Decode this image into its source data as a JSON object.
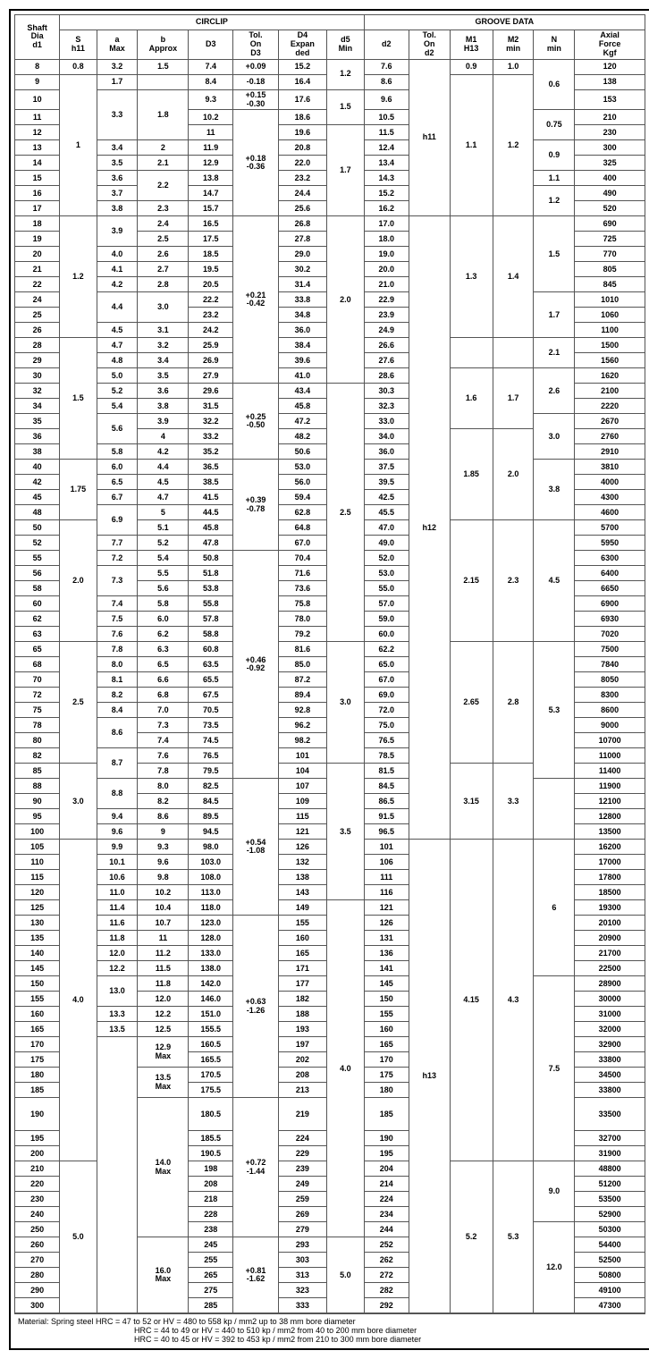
{
  "title_circlip": "CIRCLIP",
  "title_groove": "GROOVE DATA",
  "headers": {
    "shaft": "Shaft\nDia\nd1",
    "s": "S\nh11",
    "a": "a\nMax",
    "b": "b\nApprox",
    "d3": "D3",
    "told3": "Tol.\nOn\nD3",
    "d4": "D4\nExpan\nded",
    "d5": "d5\nMin",
    "d2": "d2",
    "told2": "Tol.\nOn\nd2",
    "m1": "M1\nH13",
    "m2": "M2\nmin",
    "n": "N\nmin",
    "axial": "Axial\nForce\nKgf"
  },
  "tolerances": {
    "d3_1": "+0.09",
    "d3_2": "-0.18",
    "d3_3": "+0.15\n-0.30",
    "d3_4": "+0.18\n-0.36",
    "d3_5": "+0.21\n-0.42",
    "d3_6": "+0.25\n-0.50",
    "d3_7": "+0.39\n-0.78",
    "d3_8": "+0.46\n-0.92",
    "d3_9": "+0.54\n-1.08",
    "d3_10": "+0.63\n-1.26",
    "d3_11": "+0.72\n-1.44",
    "d3_12": "+0.81\n-1.62",
    "d2_1": "h11",
    "d2_2": "h12",
    "d2_3": "h13"
  },
  "bspecial": {
    "b129": "12.9\nMax",
    "b135": "13.5\nMax",
    "b140": "14.0\nMax",
    "b160": "16.0\nMax"
  },
  "notes": {
    "l1": "Material: Spring steel HRC = 47 to 52 or HV = 480 to 558 kp / mm2 up to 38 mm bore diameter",
    "l2": "HRC = 44 to 49 or HV = 440 to 510 kp / mm2 from 40  to 200 mm bore diameter",
    "l3": "HRC = 40 to 45 or HV = 392 to 453 kp / mm2 from 210  to 300 mm bore diameter"
  },
  "rows": [
    {
      "d1": "8",
      "s": "0.8",
      "a": "3.2",
      "b": "1.5",
      "d3": "7.4",
      "d4": "15.2",
      "d5": "1.2",
      "d2": "7.6",
      "m1": "0.9",
      "m2": "1.0",
      "n": "0.6",
      "ax": "120"
    },
    {
      "d1": "9",
      "a": "1.7",
      "d3": "8.4",
      "d4": "16.4",
      "d2": "8.6",
      "ax": "138"
    },
    {
      "d1": "10",
      "a": "3.3",
      "b": "1.8",
      "d3": "9.3",
      "d4": "17.6",
      "d5": "1.5",
      "d2": "9.6",
      "m1": "1.1",
      "m2": "1.2",
      "ax": "153"
    },
    {
      "d1": "11",
      "s": "1",
      "d3": "10.2",
      "d4": "18.6",
      "d2": "10.5",
      "n": "0.75",
      "ax": "210"
    },
    {
      "d1": "12",
      "d3": "11",
      "d4": "19.6",
      "d5": "1.7",
      "d2": "11.5",
      "ax": "230"
    },
    {
      "d1": "13",
      "a": "3.4",
      "b": "2",
      "d3": "11.9",
      "d4": "20.8",
      "d2": "12.4",
      "n": "0.9",
      "ax": "300"
    },
    {
      "d1": "14",
      "a": "3.5",
      "b": "2.1",
      "d3": "12.9",
      "d4": "22.0",
      "d2": "13.4",
      "ax": "325"
    },
    {
      "d1": "15",
      "a": "3.6",
      "b": "2.2",
      "d3": "13.8",
      "d4": "23.2",
      "d2": "14.3",
      "n": "1.1",
      "ax": "400"
    },
    {
      "d1": "16",
      "a": "3.7",
      "d3": "14.7",
      "d4": "24.4",
      "d2": "15.2",
      "n": "1.2",
      "ax": "490"
    },
    {
      "d1": "17",
      "a": "3.8",
      "b": "2.3",
      "d3": "15.7",
      "d4": "25.6",
      "d2": "16.2",
      "ax": "520"
    },
    {
      "d1": "18",
      "s": "1.2",
      "a": "3.9",
      "b": "2.4",
      "d3": "16.5",
      "d4": "26.8",
      "d5": "2.0",
      "d2": "17.0",
      "m1": "1.3",
      "m2": "1.4",
      "n": "1.5",
      "ax": "690"
    },
    {
      "d1": "19",
      "b": "2.5",
      "d3": "17.5",
      "d4": "27.8",
      "d2": "18.0",
      "ax": "725"
    },
    {
      "d1": "20",
      "a": "4.0",
      "b": "2.6",
      "d3": "18.5",
      "d4": "29.0",
      "d2": "19.0",
      "ax": "770"
    },
    {
      "d1": "21",
      "a": "4.1",
      "b": "2.7",
      "d3": "19.5",
      "d4": "30.2",
      "d2": "20.0",
      "ax": "805"
    },
    {
      "d1": "22",
      "a": "4.2",
      "b": "2.8",
      "d3": "20.5",
      "d4": "31.4",
      "d2": "21.0",
      "ax": "845"
    },
    {
      "d1": "24",
      "a": "4.4",
      "b": "3.0",
      "d3": "22.2",
      "d4": "33.8",
      "d2": "22.9",
      "n": "1.7",
      "ax": "1010"
    },
    {
      "d1": "25",
      "d3": "23.2",
      "d4": "34.8",
      "d2": "23.9",
      "ax": "1060"
    },
    {
      "d1": "26",
      "a": "4.5",
      "b": "3.1",
      "d3": "24.2",
      "d4": "36.0",
      "d2": "24.9",
      "ax": "1100"
    },
    {
      "d1": "28",
      "s": "1.5",
      "a": "4.7",
      "b": "3.2",
      "d3": "25.9",
      "d4": "38.4",
      "d2": "26.6",
      "n": "2.1",
      "ax": "1500"
    },
    {
      "d1": "29",
      "a": "4.8",
      "b": "3.4",
      "d3": "26.9",
      "d4": "39.6",
      "d2": "27.6",
      "ax": "1560"
    },
    {
      "d1": "30",
      "a": "5.0",
      "b": "3.5",
      "d3": "27.9",
      "d4": "41.0",
      "d2": "28.6",
      "m1": "1.6",
      "m2": "1.7",
      "ax": "1620"
    },
    {
      "d1": "32",
      "a": "5.2",
      "b": "3.6",
      "d3": "29.6",
      "d4": "43.4",
      "d5": "2.5",
      "d2": "30.3",
      "n": "2.6",
      "ax": "2100"
    },
    {
      "d1": "34",
      "a": "5.4",
      "b": "3.8",
      "d3": "31.5",
      "d4": "45.8",
      "d2": "32.3",
      "ax": "2220"
    },
    {
      "d1": "35",
      "a": "5.6",
      "b": "3.9",
      "d3": "32.2",
      "d4": "47.2",
      "d2": "33.0",
      "n": "3.0",
      "ax": "2670"
    },
    {
      "d1": "36",
      "b": "4",
      "d3": "33.2",
      "d4": "48.2",
      "d2": "34.0",
      "m1": "1.85",
      "m2": "2.0",
      "ax": "2760"
    },
    {
      "d1": "38",
      "a": "5.8",
      "b": "4.2",
      "d3": "35.2",
      "d4": "50.6",
      "d2": "36.0",
      "ax": "2910"
    },
    {
      "d1": "40",
      "s": "1.75",
      "a": "6.0",
      "b": "4.4",
      "d3": "36.5",
      "d4": "53.0",
      "d2": "37.5",
      "n": "3.8",
      "ax": "3810"
    },
    {
      "d1": "42",
      "a": "6.5",
      "b": "4.5",
      "d3": "38.5",
      "d4": "56.0",
      "d2": "39.5",
      "ax": "4000"
    },
    {
      "d1": "45",
      "a": "6.7",
      "b": "4.7",
      "d3": "41.5",
      "d4": "59.4",
      "d2": "42.5",
      "ax": "4300"
    },
    {
      "d1": "48",
      "a": "6.9",
      "b": "5",
      "d3": "44.5",
      "d4": "62.8",
      "d2": "45.5",
      "ax": "4600"
    },
    {
      "d1": "50",
      "s": "2.0",
      "b": "5.1",
      "d3": "45.8",
      "d4": "64.8",
      "d2": "47.0",
      "m1": "2.15",
      "m2": "2.3",
      "n": "4.5",
      "ax": "5700"
    },
    {
      "d1": "52",
      "a": "7.7",
      "b": "5.2",
      "d3": "47.8",
      "d4": "67.0",
      "d2": "49.0",
      "ax": "5950"
    },
    {
      "d1": "55",
      "a": "7.2",
      "b": "5.4",
      "d3": "50.8",
      "d4": "70.4",
      "d2": "52.0",
      "ax": "6300"
    },
    {
      "d1": "56",
      "a": "7.3",
      "b": "5.5",
      "d3": "51.8",
      "d4": "71.6",
      "d2": "53.0",
      "ax": "6400"
    },
    {
      "d1": "58",
      "b": "5.6",
      "d3": "53.8",
      "d4": "73.6",
      "d2": "55.0",
      "ax": "6650"
    },
    {
      "d1": "60",
      "a": "7.4",
      "b": "5.8",
      "d3": "55.8",
      "d4": "75.8",
      "d2": "57.0",
      "ax": "6900"
    },
    {
      "d1": "62",
      "a": "7.5",
      "b": "6.0",
      "d3": "57.8",
      "d4": "78.0",
      "d2": "59.0",
      "ax": "6930"
    },
    {
      "d1": "63",
      "a": "7.6",
      "b": "6.2",
      "d3": "58.8",
      "d4": "79.2",
      "d2": "60.0",
      "ax": "7020"
    },
    {
      "d1": "65",
      "s": "2.5",
      "a": "7.8",
      "b": "6.3",
      "d3": "60.8",
      "d4": "81.6",
      "d5": "3.0",
      "d2": "62.2",
      "m1": "2.65",
      "m2": "2.8",
      "n": "5.3",
      "ax": "7500"
    },
    {
      "d1": "68",
      "a": "8.0",
      "b": "6.5",
      "d3": "63.5",
      "d4": "85.0",
      "d2": "65.0",
      "ax": "7840"
    },
    {
      "d1": "70",
      "a": "8.1",
      "b": "6.6",
      "d3": "65.5",
      "d4": "87.2",
      "d2": "67.0",
      "ax": "8050"
    },
    {
      "d1": "72",
      "a": "8.2",
      "b": "6.8",
      "d3": "67.5",
      "d4": "89.4",
      "d2": "69.0",
      "ax": "8300"
    },
    {
      "d1": "75",
      "a": "8.4",
      "b": "7.0",
      "d3": "70.5",
      "d4": "92.8",
      "d2": "72.0",
      "ax": "8600"
    },
    {
      "d1": "78",
      "a": "8.6",
      "b": "7.3",
      "d3": "73.5",
      "d4": "96.2",
      "d2": "75.0",
      "ax": "9000"
    },
    {
      "d1": "80",
      "b": "7.4",
      "d3": "74.5",
      "d4": "98.2",
      "d2": "76.5",
      "ax": "10700"
    },
    {
      "d1": "82",
      "a": "8.7",
      "b": "7.6",
      "d3": "76.5",
      "d4": "101",
      "d2": "78.5",
      "ax": "11000"
    },
    {
      "d1": "85",
      "s": "3.0",
      "b": "7.8",
      "d3": "79.5",
      "d4": "104",
      "d5": "3.5",
      "d2": "81.5",
      "m1": "3.15",
      "m2": "3.3",
      "ax": "11400"
    },
    {
      "d1": "88",
      "a": "8.8",
      "b": "8.0",
      "d3": "82.5",
      "d4": "107",
      "d2": "84.5",
      "ax": "11900"
    },
    {
      "d1": "90",
      "b": "8.2",
      "d3": "84.5",
      "d4": "109",
      "d2": "86.5",
      "ax": "12100"
    },
    {
      "d1": "95",
      "a": "9.4",
      "b": "8.6",
      "d3": "89.5",
      "d4": "115",
      "d2": "91.5",
      "ax": "12800"
    },
    {
      "d1": "100",
      "a": "9.6",
      "b": "9",
      "d3": "94.5",
      "d4": "121",
      "d2": "96.5",
      "ax": "13500"
    },
    {
      "d1": "105",
      "s": "4.0",
      "a": "9.9",
      "b": "9.3",
      "d3": "98.0",
      "d4": "126",
      "d2": "101",
      "m1": "4.15",
      "m2": "4.3",
      "n": "6",
      "ax": "16200"
    },
    {
      "d1": "110",
      "a": "10.1",
      "b": "9.6",
      "d3": "103.0",
      "d4": "132",
      "d2": "106",
      "ax": "17000"
    },
    {
      "d1": "115",
      "a": "10.6",
      "b": "9.8",
      "d3": "108.0",
      "d4": "138",
      "d2": "111",
      "ax": "17800"
    },
    {
      "d1": "120",
      "a": "11.0",
      "b": "10.2",
      "d3": "113.0",
      "d4": "143",
      "d2": "116",
      "ax": "18500"
    },
    {
      "d1": "125",
      "a": "11.4",
      "b": "10.4",
      "d3": "118.0",
      "d4": "149",
      "d5": "4.0",
      "d2": "121",
      "ax": "19300"
    },
    {
      "d1": "130",
      "a": "11.6",
      "b": "10.7",
      "d3": "123.0",
      "d4": "155",
      "d2": "126",
      "ax": "20100"
    },
    {
      "d1": "135",
      "a": "11.8",
      "b": "11",
      "d3": "128.0",
      "d4": "160",
      "d2": "131",
      "ax": "20900"
    },
    {
      "d1": "140",
      "a": "12.0",
      "b": "11.2",
      "d3": "133.0",
      "d4": "165",
      "d2": "136",
      "ax": "21700"
    },
    {
      "d1": "145",
      "a": "12.2",
      "b": "11.5",
      "d3": "138.0",
      "d4": "171",
      "d2": "141",
      "ax": "22500"
    },
    {
      "d1": "150",
      "a": "13.0",
      "b": "11.8",
      "d3": "142.0",
      "d4": "177",
      "d2": "145",
      "n": "7.5",
      "ax": "28900"
    },
    {
      "d1": "155",
      "b": "12.0",
      "d3": "146.0",
      "d4": "182",
      "d2": "150",
      "ax": "30000"
    },
    {
      "d1": "160",
      "a": "13.3",
      "b": "12.2",
      "d3": "151.0",
      "d4": "188",
      "d2": "155",
      "ax": "31000"
    },
    {
      "d1": "165",
      "a": "13.5",
      "b": "12.5",
      "d3": "155.5",
      "d4": "193",
      "d2": "160",
      "ax": "32000"
    },
    {
      "d1": "170",
      "d3": "160.5",
      "d4": "197",
      "d2": "165",
      "ax": "32900"
    },
    {
      "d1": "175",
      "d3": "165.5",
      "d4": "202",
      "d2": "170",
      "ax": "33800"
    },
    {
      "d1": "180",
      "d3": "170.5",
      "d4": "208",
      "d2": "175",
      "ax": "34500"
    },
    {
      "d1": "185",
      "d3": "175.5",
      "d4": "213",
      "d2": "180",
      "ax": "33800"
    },
    {
      "d1": "190",
      "d3": "180.5",
      "d4": "219",
      "d2": "185",
      "ax": "33500"
    },
    {
      "d1": "195",
      "d3": "185.5",
      "d4": "224",
      "d2": "190",
      "ax": "32700"
    },
    {
      "d1": "200",
      "d3": "190.5",
      "d4": "229",
      "d2": "195",
      "ax": "31900"
    },
    {
      "d1": "210",
      "s": "5.0",
      "d3": "198",
      "d4": "239",
      "d2": "204",
      "m1": "5.2",
      "m2": "5.3",
      "n": "9.0",
      "ax": "48800"
    },
    {
      "d1": "220",
      "d3": "208",
      "d4": "249",
      "d2": "214",
      "ax": "51200"
    },
    {
      "d1": "230",
      "d3": "218",
      "d4": "259",
      "d2": "224",
      "ax": "53500"
    },
    {
      "d1": "240",
      "d3": "228",
      "d4": "269",
      "d2": "234",
      "ax": "52900"
    },
    {
      "d1": "250",
      "d3": "238",
      "d4": "279",
      "d2": "244",
      "n": "12.0",
      "ax": "50300"
    },
    {
      "d1": "260",
      "d3": "245",
      "d4": "293",
      "d5": "5.0",
      "d2": "252",
      "ax": "54400"
    },
    {
      "d1": "270",
      "d3": "255",
      "d4": "303",
      "d2": "262",
      "ax": "52500"
    },
    {
      "d1": "280",
      "d3": "265",
      "d4": "313",
      "d2": "272",
      "ax": "50800"
    },
    {
      "d1": "290",
      "d3": "275",
      "d4": "323",
      "d2": "282",
      "ax": "49100"
    },
    {
      "d1": "300",
      "d3": "285",
      "d4": "333",
      "d2": "292",
      "ax": "47300"
    }
  ]
}
